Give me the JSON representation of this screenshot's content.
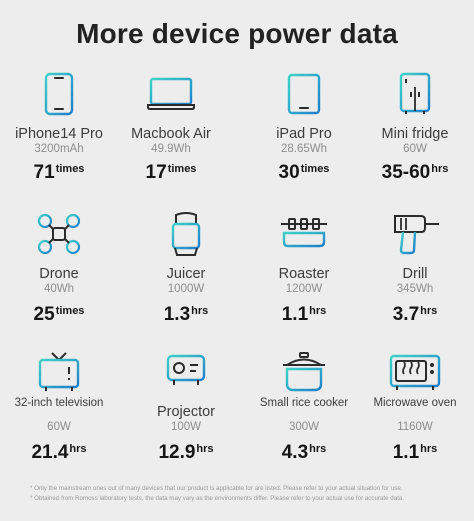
{
  "title": "More device power data",
  "accent_color": "#21b5c7",
  "devices": [
    {
      "icon": "phone-icon",
      "name": "iPhone14 Pro",
      "spec": "3200mAh",
      "value": "71",
      "unit": "times"
    },
    {
      "icon": "laptop-icon",
      "name": "Macbook Air",
      "spec": "49.9Wh",
      "value": "17",
      "unit": "times"
    },
    {
      "icon": "tablet-icon",
      "name": "iPad Pro",
      "spec": "28.65Wh",
      "value": "30",
      "unit": "times"
    },
    {
      "icon": "fridge-icon",
      "name": "Mini fridge",
      "spec": "60W",
      "value": "35-60",
      "unit": "hrs"
    },
    {
      "icon": "drone-icon",
      "name": "Drone",
      "spec": "40Wh",
      "value": "25",
      "unit": "times"
    },
    {
      "icon": "juicer-icon",
      "name": "Juicer",
      "spec": "1000W",
      "value": "1.3",
      "unit": "hrs"
    },
    {
      "icon": "roaster-icon",
      "name": "Roaster",
      "spec": "1200W",
      "value": "1.1",
      "unit": "hrs"
    },
    {
      "icon": "drill-icon",
      "name": "Drill",
      "spec": "345Wh",
      "value": "3.7",
      "unit": "hrs"
    },
    {
      "icon": "tv-icon",
      "name": "32-inch television",
      "spec": "60W",
      "value": "21.4",
      "unit": "hrs"
    },
    {
      "icon": "projector-icon",
      "name": "Projector",
      "spec": "100W",
      "value": "12.9",
      "unit": "hrs"
    },
    {
      "icon": "rice-cooker-icon",
      "name": "Small rice cooker",
      "spec": "300W",
      "value": "4.3",
      "unit": "hrs"
    },
    {
      "icon": "microwave-icon",
      "name": "Microwave oven",
      "spec": "1160W",
      "value": "1.1",
      "unit": "hrs"
    }
  ],
  "footnotes": [
    "* Only the mainstream ones out of many devices that our product is applicable for are listed. Please refer to your actual situation for use.",
    "* Obtained from Romoss laboratory tests, the data may vary as the environments differ. Please refer to your actual use for accurate data."
  ]
}
